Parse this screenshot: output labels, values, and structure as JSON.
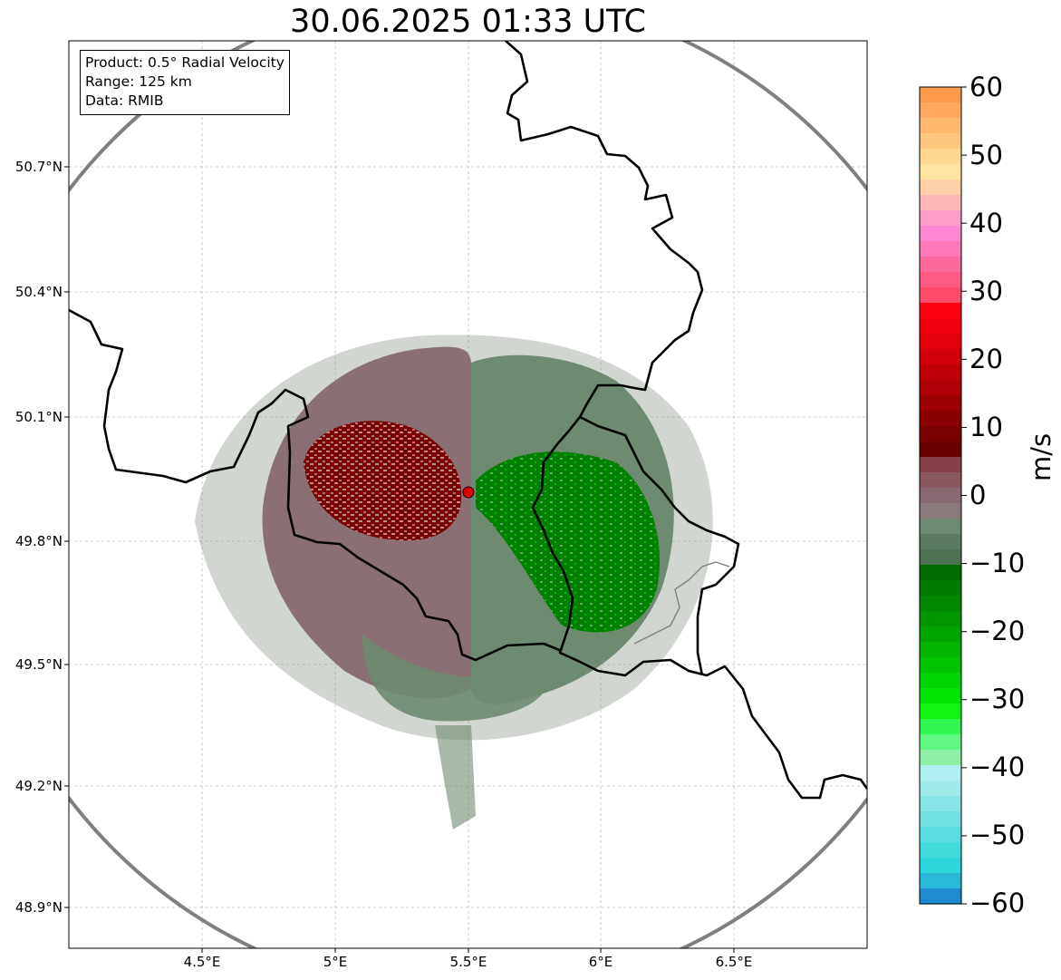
{
  "title": "30.06.2025 01:33 UTC",
  "info": {
    "product": "Product: 0.5° Radial Velocity",
    "range": "Range: 125 km",
    "data": "Data: RMIB"
  },
  "axes": {
    "lat_ticks": [
      "50.7°N",
      "50.4°N",
      "50.1°N",
      "49.8°N",
      "49.5°N",
      "49.2°N",
      "48.9°N"
    ],
    "lon_ticks": [
      "4.5°E",
      "5°E",
      "5.5°E",
      "6°E",
      "6.5°E"
    ]
  },
  "colorbar": {
    "label": "m/s",
    "ticks": [
      "60",
      "50",
      "40",
      "30",
      "20",
      "10",
      "0",
      "−10",
      "−20",
      "−30",
      "−40",
      "−50",
      "−60"
    ],
    "range": [
      -60,
      60
    ],
    "colors_top_to_bottom": [
      "#ff9a4d",
      "#ffa85e",
      "#ffb86e",
      "#ffc77e",
      "#ffd790",
      "#ffe4a0",
      "#ffd0a8",
      "#ffb6b8",
      "#ff9cc8",
      "#ff86d0",
      "#ff78b8",
      "#ff6a9e",
      "#ff5a84",
      "#ff4a6a",
      "#ff0010",
      "#f00010",
      "#e2000c",
      "#d2000a",
      "#c00008",
      "#ae0006",
      "#9c0004",
      "#8a0002",
      "#7a0000",
      "#6a0000",
      "#884048",
      "#8a5860",
      "#8a6a72",
      "#8a7a7c",
      "#6e8a72",
      "#5c7a60",
      "#4e7052",
      "#006a00",
      "#007a00",
      "#008800",
      "#009600",
      "#00a400",
      "#00b400",
      "#00c400",
      "#00d400",
      "#00e400",
      "#10f410",
      "#30f850",
      "#60f880",
      "#90f0a8",
      "#b0f0f0",
      "#a0eaea",
      "#88e6e6",
      "#70e2e2",
      "#58dee0",
      "#40dcdc",
      "#2cd8dc",
      "#28b8d8",
      "#1e8ad0"
    ]
  },
  "map": {
    "radar_center": {
      "lon": 5.51,
      "lat": 49.91
    },
    "lon_range": [
      4.0,
      7.0
    ],
    "lat_range": [
      48.8,
      51.0
    ],
    "colors": {
      "red": "#780000",
      "pink_gray": "#8a7074",
      "gray_green": "#6e8a70",
      "green": "#008000",
      "bright_green": "#00e000",
      "range_ring": "#808080",
      "border": "#000000",
      "radar_marker": "#e00000"
    }
  }
}
